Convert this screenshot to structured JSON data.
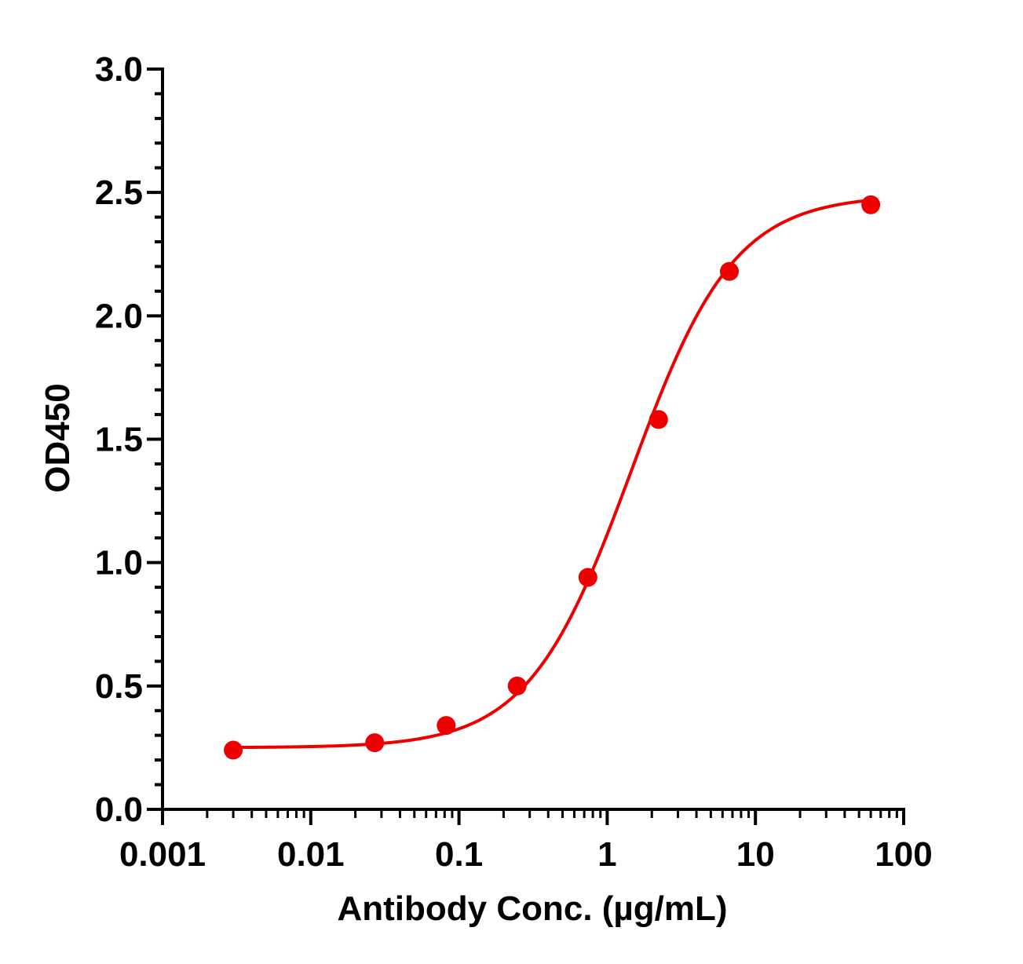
{
  "chart_data": {
    "type": "scatter",
    "title": "",
    "xlabel": "Antibody Conc. (µg/mL)",
    "ylabel": "OD450",
    "x_scale": "log",
    "xlim": [
      0.001,
      100
    ],
    "ylim": [
      0,
      3.0
    ],
    "x_ticks": [
      0.001,
      0.01,
      0.1,
      1,
      10,
      100
    ],
    "x_tick_labels": [
      "0.001",
      "0.01",
      "0.1",
      "1",
      "10",
      "100"
    ],
    "y_ticks": [
      0,
      0.5,
      1.0,
      1.5,
      2.0,
      2.5,
      3.0
    ],
    "y_tick_labels": [
      "0.0",
      "0.5",
      "1.0",
      "1.5",
      "2.0",
      "2.5",
      "3.0"
    ],
    "grid": false,
    "legend": "none",
    "series": [
      {
        "color": "#ee0000",
        "x": [
          0.003,
          0.027,
          0.082,
          0.247,
          0.741,
          2.22,
          6.67,
          60
        ],
        "y": [
          0.24,
          0.27,
          0.34,
          0.5,
          0.94,
          1.58,
          2.18,
          2.45
        ]
      }
    ],
    "fit": {
      "type": "4PL",
      "bottom": 0.25,
      "top": 2.49,
      "ec50": 1.45,
      "hill": 1.25
    }
  }
}
